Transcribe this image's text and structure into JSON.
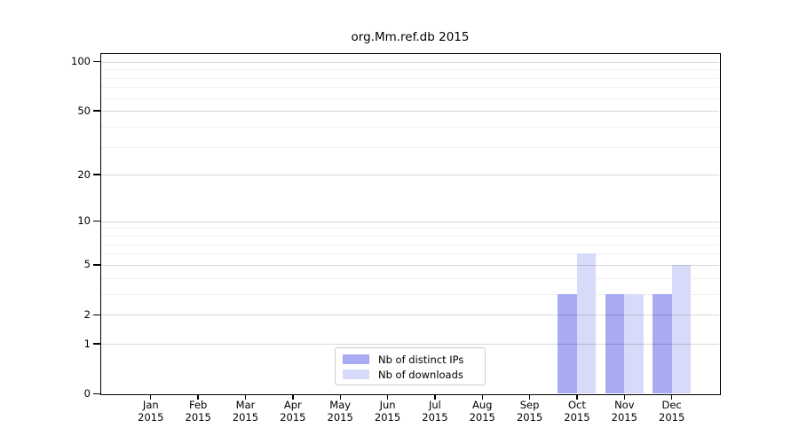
{
  "title": "org.Mm.ref.db 2015",
  "chart_data": {
    "type": "bar",
    "title": "org.Mm.ref.db 2015",
    "categories": [
      "Jan",
      "Feb",
      "Mar",
      "Apr",
      "May",
      "Jun",
      "Jul",
      "Aug",
      "Sep",
      "Oct",
      "Nov",
      "Dec"
    ],
    "year_label": "2015",
    "series": [
      {
        "name": "Nb of distinct IPs",
        "color": "#a8aaf2",
        "values": [
          0,
          0,
          0,
          0,
          0,
          0,
          0,
          0,
          0,
          3,
          3,
          3
        ]
      },
      {
        "name": "Nb of downloads",
        "color": "#d8daf9",
        "values": [
          0,
          0,
          0,
          0,
          0,
          0,
          0,
          0,
          0,
          6,
          3,
          5
        ]
      }
    ],
    "yscale": "log1p",
    "ylim": [
      0,
      112
    ],
    "yticks_major": [
      0,
      1,
      2,
      5,
      10,
      20,
      50,
      100
    ],
    "yticks_minor": [
      3,
      4,
      6,
      7,
      8,
      9,
      30,
      40,
      60,
      70,
      80,
      90
    ],
    "grid": true,
    "legend_position": "lower-center-inside",
    "legend_items": [
      "Nb of distinct IPs",
      "Nb of downloads"
    ]
  }
}
